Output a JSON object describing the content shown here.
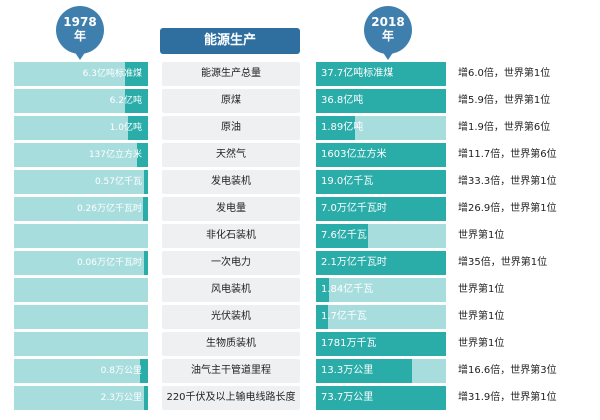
{
  "header": {
    "left_year": "1978",
    "left_suffix": "年",
    "right_year": "2018",
    "right_suffix": "年",
    "title": "能源生产"
  },
  "rows": [
    {
      "label": "能源生产总量",
      "left_value": "6.3亿吨标准煤",
      "left_level": 0.17,
      "right_value": "37.7亿吨标准煤",
      "right_level": 1.0,
      "note": "增6.0倍，世界第1位"
    },
    {
      "label": "原煤",
      "left_value": "6.2亿吨",
      "left_level": 0.17,
      "right_value": "36.8亿吨",
      "right_level": 1.0,
      "note": "增5.9倍，世界第1位"
    },
    {
      "label": "原油",
      "left_value": "1.0亿吨",
      "left_level": 0.15,
      "right_value": "1.89亿吨",
      "right_level": 0.3,
      "note": "增1.9倍，世界第6位"
    },
    {
      "label": "天然气",
      "left_value": "137亿立方米",
      "left_level": 0.08,
      "right_value": "1603亿立方米",
      "right_level": 1.0,
      "note": "增11.7倍，世界第6位"
    },
    {
      "label": "发电装机",
      "left_value": "0.57亿千瓦",
      "left_level": 0.03,
      "right_value": "19.0亿千瓦",
      "right_level": 1.0,
      "note": "增33.3倍，世界第1位"
    },
    {
      "label": "发电量",
      "left_value": "0.26万亿千瓦时",
      "left_level": 0.04,
      "right_value": "7.0万亿千瓦时",
      "right_level": 1.0,
      "note": "增26.9倍，世界第1位"
    },
    {
      "label": "非化石装机",
      "left_value": "",
      "left_level": 0.0,
      "right_value": "7.6亿千瓦",
      "right_level": 0.4,
      "note": "世界第1位"
    },
    {
      "label": "一次电力",
      "left_value": "0.06万亿千瓦时",
      "left_level": 0.03,
      "right_value": "2.1万亿千瓦时",
      "right_level": 1.0,
      "note": "增35倍，世界第1位"
    },
    {
      "label": "风电装机",
      "left_value": "",
      "left_level": 0.0,
      "right_value": "1.84亿千瓦",
      "right_level": 0.1,
      "note": "世界第1位"
    },
    {
      "label": "光伏装机",
      "left_value": "",
      "left_level": 0.0,
      "right_value": "1.7亿千瓦",
      "right_level": 0.09,
      "note": "世界第1位"
    },
    {
      "label": "生物质装机",
      "left_value": "",
      "left_level": 0.0,
      "right_value": "1781万千瓦",
      "right_level": 1.0,
      "note": "世界第1位"
    },
    {
      "label": "油气主干管道里程",
      "left_value": "0.8万公里",
      "left_level": 0.06,
      "right_value": "13.3万公里",
      "right_level": 0.74,
      "note": "增16.6倍，世界第3位"
    },
    {
      "label": "220千伏及以上输电线路长度",
      "left_value": "2.3万公里",
      "left_level": 0.03,
      "right_value": "73.7万公里",
      "right_level": 1.0,
      "note": "增31.9倍，世界第1位"
    }
  ]
}
